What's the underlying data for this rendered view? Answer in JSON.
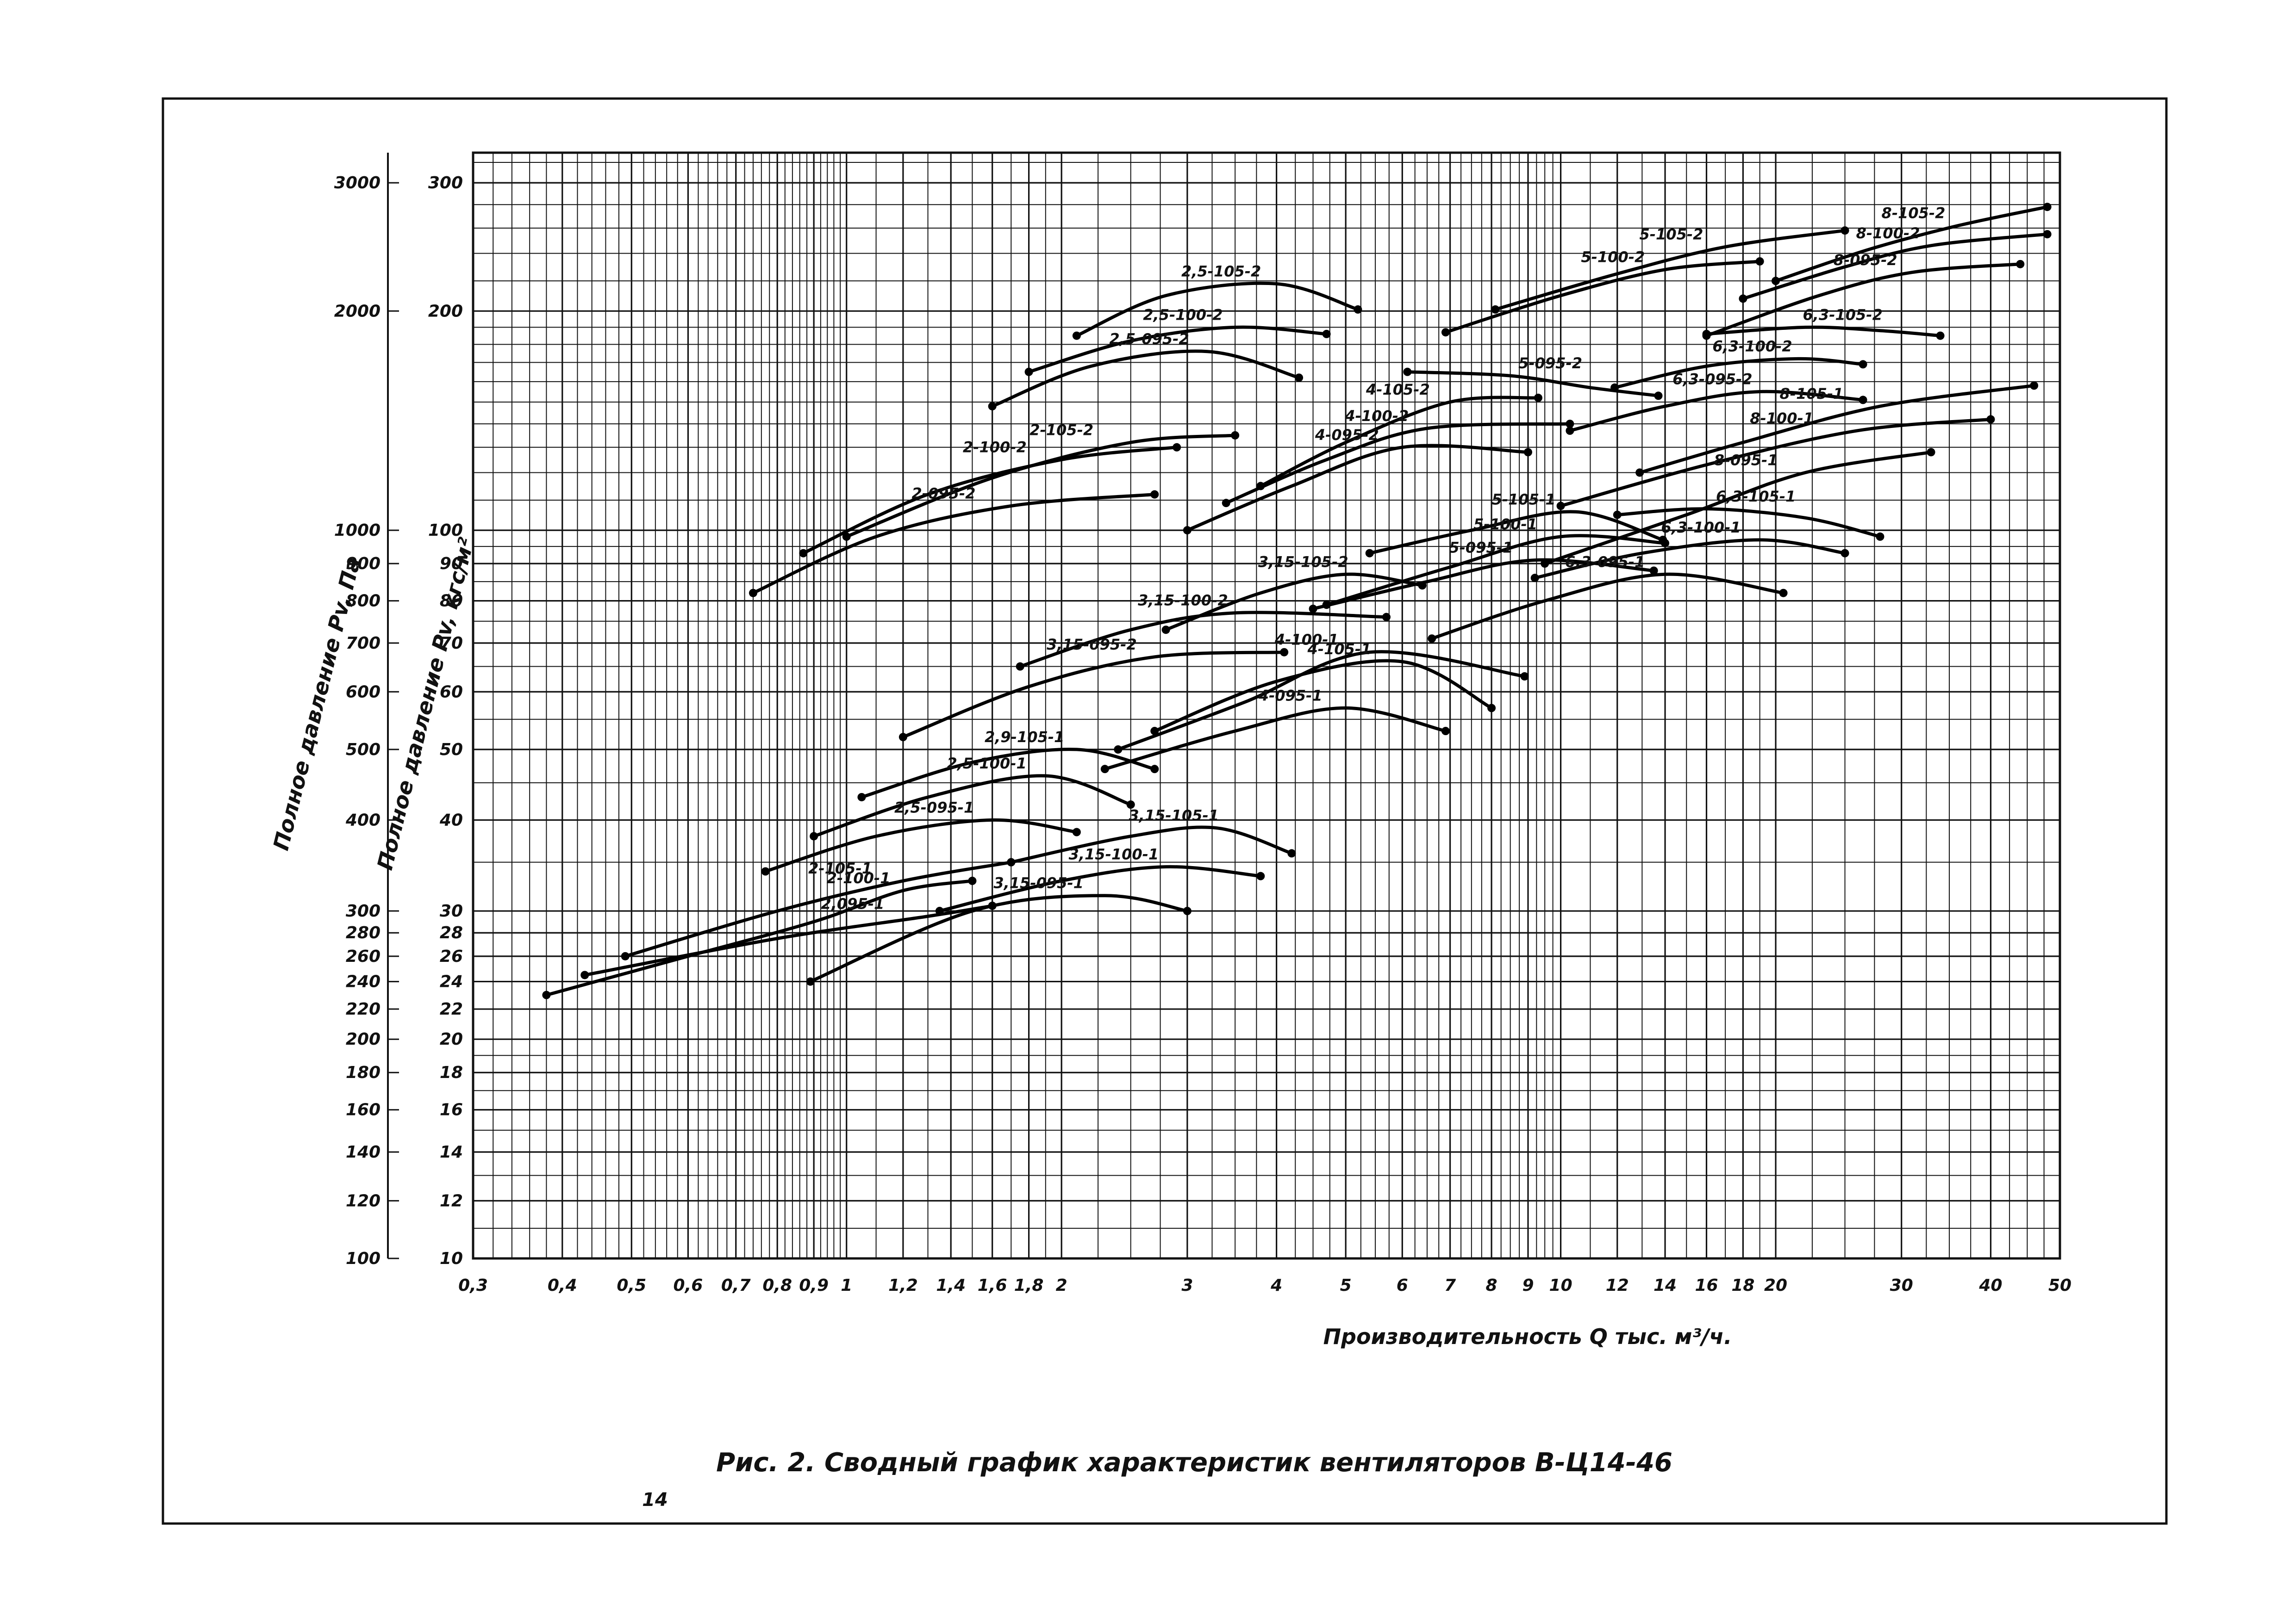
{
  "chart_data": {
    "type": "line",
    "title": "Рис. 2. Сводный график характеристик вентиляторов В-Ц14-46",
    "xlabel": "Производительность Q тыс. м³/ч.",
    "ylabel": "Полное давление Pv, кгс/м²",
    "ylabel2": "Полное давление Pv, Па",
    "x_scale": "log",
    "y_scale": "log",
    "xlim": [
      0.3,
      50
    ],
    "ylim": [
      10,
      330
    ],
    "grid": true,
    "x_ticks": [
      {
        "v": 0.3,
        "t": "0,3"
      },
      {
        "v": 0.4,
        "t": "0,4"
      },
      {
        "v": 0.5,
        "t": "0,5"
      },
      {
        "v": 0.6,
        "t": "0,6"
      },
      {
        "v": 0.7,
        "t": "0,7"
      },
      {
        "v": 0.8,
        "t": "0,8"
      },
      {
        "v": 0.9,
        "t": "0,9"
      },
      {
        "v": 1,
        "t": "1"
      },
      {
        "v": 1.2,
        "t": "1,2"
      },
      {
        "v": 1.4,
        "t": "1,4"
      },
      {
        "v": 1.6,
        "t": "1,6"
      },
      {
        "v": 1.8,
        "t": "1,8"
      },
      {
        "v": 2,
        "t": "2"
      },
      {
        "v": 3,
        "t": "3"
      },
      {
        "v": 4,
        "t": "4"
      },
      {
        "v": 5,
        "t": "5"
      },
      {
        "v": 6,
        "t": "6"
      },
      {
        "v": 7,
        "t": "7"
      },
      {
        "v": 8,
        "t": "8"
      },
      {
        "v": 9,
        "t": "9"
      },
      {
        "v": 10,
        "t": "10"
      },
      {
        "v": 12,
        "t": "12"
      },
      {
        "v": 14,
        "t": "14"
      },
      {
        "v": 16,
        "t": "16"
      },
      {
        "v": 18,
        "t": "18"
      },
      {
        "v": 20,
        "t": "20"
      },
      {
        "v": 30,
        "t": "30"
      },
      {
        "v": 40,
        "t": "40"
      },
      {
        "v": 50,
        "t": "50"
      }
    ],
    "y_ticks": [
      {
        "v": 10,
        "t": "10"
      },
      {
        "v": 12,
        "t": "12"
      },
      {
        "v": 14,
        "t": "14"
      },
      {
        "v": 16,
        "t": "16"
      },
      {
        "v": 18,
        "t": "18"
      },
      {
        "v": 20,
        "t": "20"
      },
      {
        "v": 22,
        "t": "22"
      },
      {
        "v": 24,
        "t": "24"
      },
      {
        "v": 26,
        "t": "26"
      },
      {
        "v": 28,
        "t": "28"
      },
      {
        "v": 30,
        "t": "30"
      },
      {
        "v": 40,
        "t": "40"
      },
      {
        "v": 50,
        "t": "50"
      },
      {
        "v": 60,
        "t": "60"
      },
      {
        "v": 70,
        "t": "70"
      },
      {
        "v": 80,
        "t": "80"
      },
      {
        "v": 90,
        "t": "90"
      },
      {
        "v": 100,
        "t": "100"
      },
      {
        "v": 200,
        "t": "200"
      },
      {
        "v": 300,
        "t": "300"
      }
    ],
    "y2_ticks": [
      {
        "v": 10,
        "t": "100"
      },
      {
        "v": 12,
        "t": "120"
      },
      {
        "v": 14,
        "t": "140"
      },
      {
        "v": 16,
        "t": "160"
      },
      {
        "v": 18,
        "t": "180"
      },
      {
        "v": 20,
        "t": "200"
      },
      {
        "v": 22,
        "t": "220"
      },
      {
        "v": 24,
        "t": "240"
      },
      {
        "v": 26,
        "t": "260"
      },
      {
        "v": 28,
        "t": "280"
      },
      {
        "v": 30,
        "t": "300"
      },
      {
        "v": 40,
        "t": "400"
      },
      {
        "v": 50,
        "t": "500"
      },
      {
        "v": 60,
        "t": "600"
      },
      {
        "v": 70,
        "t": "700"
      },
      {
        "v": 80,
        "t": "800"
      },
      {
        "v": 90,
        "t": "900"
      },
      {
        "v": 100,
        "t": "1000"
      },
      {
        "v": 200,
        "t": "2000"
      },
      {
        "v": 300,
        "t": "3000"
      }
    ],
    "series": [
      {
        "name": "2-100-1",
        "x": [
          0.38,
          0.6,
          0.9,
          1.2,
          1.5
        ],
        "y": [
          23,
          26,
          29,
          32,
          33
        ]
      },
      {
        "name": "2-105-1",
        "x": [
          0.49,
          0.8,
          1.2,
          1.7
        ],
        "y": [
          26,
          30,
          33,
          35
        ]
      },
      {
        "name": "2,095-1",
        "x": [
          0.43,
          0.8,
          1.3,
          1.6
        ],
        "y": [
          24.5,
          27.5,
          29.5,
          30.5
        ]
      },
      {
        "name": "2-100-2",
        "x": [
          0.87,
          1.3,
          2,
          2.9
        ],
        "y": [
          93,
          112,
          125,
          130
        ]
      },
      {
        "name": "2-105-2",
        "x": [
          1,
          1.6,
          2.5,
          3.5
        ],
        "y": [
          98,
          118,
          132,
          135
        ]
      },
      {
        "name": "2-095-2",
        "x": [
          0.74,
          1.1,
          1.7,
          2.7
        ],
        "y": [
          82,
          98,
          108,
          112
        ]
      },
      {
        "name": "2,5-105-2",
        "x": [
          2.1,
          2.8,
          4,
          5.2
        ],
        "y": [
          185,
          210,
          218,
          201
        ]
      },
      {
        "name": "2,5-100-2",
        "x": [
          1.8,
          2.5,
          3.5,
          4.7
        ],
        "y": [
          165,
          182,
          190,
          186
        ]
      },
      {
        "name": "2,5-095-2",
        "x": [
          1.6,
          2.2,
          3.2,
          4.3
        ],
        "y": [
          148,
          168,
          176,
          162
        ]
      },
      {
        "name": "2,9-105-1",
        "x": [
          1.05,
          1.5,
          2.1,
          2.7
        ],
        "y": [
          43,
          48,
          50,
          47
        ]
      },
      {
        "name": "2,5-100-1",
        "x": [
          0.9,
          1.3,
          1.9,
          2.5
        ],
        "y": [
          38,
          43,
          46,
          42
        ]
      },
      {
        "name": "2,5-095-1",
        "x": [
          0.77,
          1.1,
          1.6,
          2.1
        ],
        "y": [
          34,
          38,
          40,
          38.5
        ]
      },
      {
        "name": "3,15-105-2",
        "x": [
          2.8,
          3.8,
          5,
          6.4
        ],
        "y": [
          73,
          82,
          87,
          84
        ]
      },
      {
        "name": "3,15-100-2",
        "x": [
          1.75,
          2.5,
          3.5,
          5.7
        ],
        "y": [
          65,
          73,
          77,
          76
        ]
      },
      {
        "name": "3,15-095-2",
        "x": [
          1.2,
          1.8,
          2.7,
          4.1
        ],
        "y": [
          52,
          61,
          67,
          68
        ]
      },
      {
        "name": "3,15-105-1",
        "x": [
          1.7,
          2.5,
          3.3,
          4.2
        ],
        "y": [
          35,
          38,
          39,
          36
        ]
      },
      {
        "name": "3,15-100-1",
        "x": [
          1.35,
          2,
          2.8,
          3.8
        ],
        "y": [
          30,
          33,
          34.5,
          33.5
        ]
      },
      {
        "name": "3,15-095-1",
        "x": [
          0.89,
          1.5,
          2.3,
          3
        ],
        "y": [
          24,
          30,
          31.5,
          30
        ]
      },
      {
        "name": "4-105-2",
        "x": [
          3.8,
          5,
          7,
          9.3
        ],
        "y": [
          115,
          132,
          150,
          152
        ]
      },
      {
        "name": "4-100-2",
        "x": [
          3.4,
          4.7,
          6.5,
          10.3
        ],
        "y": [
          109,
          125,
          138,
          140
        ]
      },
      {
        "name": "4-095-2",
        "x": [
          3,
          4.2,
          6,
          9
        ],
        "y": [
          100,
          115,
          130,
          128
        ]
      },
      {
        "name": "4-105-1",
        "x": [
          2.7,
          4,
          6,
          8
        ],
        "y": [
          53,
          62,
          66,
          57
        ]
      },
      {
        "name": "4-100-1",
        "x": [
          2.4,
          3.6,
          5.4,
          8.9
        ],
        "y": [
          50,
          58,
          68,
          63
        ]
      },
      {
        "name": "4-095-1",
        "x": [
          2.3,
          3.5,
          5,
          6.9
        ],
        "y": [
          47,
          53,
          57,
          53
        ]
      },
      {
        "name": "5-100-2",
        "x": [
          6.9,
          10,
          14,
          19
        ],
        "y": [
          187,
          210,
          228,
          234
        ]
      },
      {
        "name": "5-105-2",
        "x": [
          8.1,
          12,
          17,
          25
        ],
        "y": [
          201,
          225,
          245,
          258
        ]
      },
      {
        "name": "5-095-2",
        "x": [
          6.1,
          8.5,
          11,
          13.7
        ],
        "y": [
          165,
          163,
          157,
          153
        ]
      },
      {
        "name": "5-105-1",
        "x": [
          5.4,
          7.5,
          10.5,
          13.9
        ],
        "y": [
          93,
          100,
          106,
          97
        ]
      },
      {
        "name": "5-100-1",
        "x": [
          4.7,
          7,
          10,
          14
        ],
        "y": [
          79,
          89,
          98,
          96
        ]
      },
      {
        "name": "5-095-1",
        "x": [
          4.5,
          6.5,
          9.2,
          13.5
        ],
        "y": [
          78,
          85,
          91,
          88
        ]
      },
      {
        "name": "6,3-105-2",
        "x": [
          16,
          22,
          28,
          34
        ],
        "y": [
          186,
          190,
          188,
          185
        ]
      },
      {
        "name": "6,3-100-2",
        "x": [
          11.9,
          16,
          21.5,
          26.5
        ],
        "y": [
          157,
          168,
          172,
          169
        ]
      },
      {
        "name": "6,3-095-2",
        "x": [
          10.3,
          14,
          19,
          26.5
        ],
        "y": [
          137,
          148,
          155,
          151
        ]
      },
      {
        "name": "6,3-105-1",
        "x": [
          12,
          16,
          22,
          28
        ],
        "y": [
          105,
          107,
          104,
          98
        ]
      },
      {
        "name": "6,3-100-1",
        "x": [
          9.2,
          13,
          19,
          25
        ],
        "y": [
          86,
          93,
          97,
          93
        ]
      },
      {
        "name": "6,3-095-1",
        "x": [
          6.6,
          9.5,
          14,
          20.5
        ],
        "y": [
          71,
          80,
          87,
          82
        ]
      },
      {
        "name": "8-105-2",
        "x": [
          20,
          27,
          36,
          48
        ],
        "y": [
          220,
          243,
          262,
          278
        ]
      },
      {
        "name": "8-100-2",
        "x": [
          18,
          25,
          33,
          48
        ],
        "y": [
          208,
          230,
          246,
          255
        ]
      },
      {
        "name": "8-095-2",
        "x": [
          16,
          23,
          31,
          44
        ],
        "y": [
          185,
          210,
          226,
          232
        ]
      },
      {
        "name": "8-105-1",
        "x": [
          12.9,
          18,
          28,
          46
        ],
        "y": [
          120,
          132,
          148,
          158
        ]
      },
      {
        "name": "8-100-1",
        "x": [
          10,
          16,
          26,
          40
        ],
        "y": [
          108,
          123,
          137,
          142
        ]
      },
      {
        "name": "8-095-1",
        "x": [
          9.5,
          15,
          22,
          33
        ],
        "y": [
          90,
          105,
          120,
          128
        ]
      }
    ]
  },
  "page_number": "14"
}
